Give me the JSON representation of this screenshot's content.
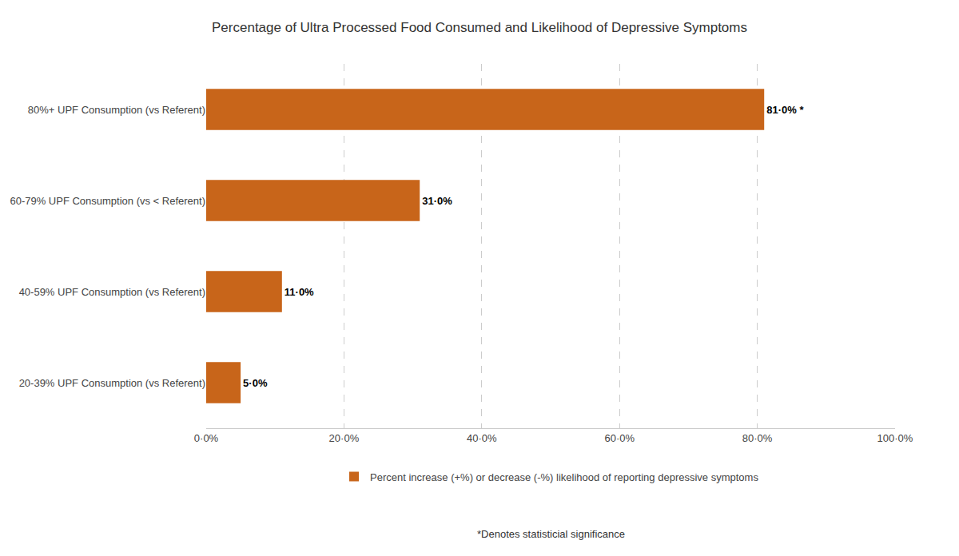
{
  "chart_data": {
    "type": "bar",
    "orientation": "horizontal",
    "title": "Percentage of Ultra Processed Food Consumed and Likelihood of Depressive Symptoms",
    "categories": [
      "20-39% UPF Consumption (vs Referent)",
      "40-59% UPF Consumption (vs Referent)",
      "60-79% UPF Consumption (vs < Referent)",
      "80%+ UPF Consumption (vs Referent)"
    ],
    "series": [
      {
        "name": "Percent increase (+%) or decrease (-%) likelihood of reporting depressive symptoms",
        "color": "#C8651A",
        "values": [
          5.0,
          11.0,
          31.0,
          81.0
        ],
        "value_labels": [
          "5·0%",
          "11·0%",
          "31·0%",
          "81·0% *"
        ]
      }
    ],
    "data_labels": true,
    "xlim": [
      0,
      100
    ],
    "xticks": [
      {
        "value": 0,
        "label": "0·0%"
      },
      {
        "value": 20,
        "label": "20·0%"
      },
      {
        "value": 40,
        "label": "40·0%"
      },
      {
        "value": 60,
        "label": "60·0%"
      },
      {
        "value": 80,
        "label": "80·0%"
      },
      {
        "value": 100,
        "label": "100·0%"
      }
    ],
    "grid": true,
    "legend": "bottom",
    "annotations": [
      "*Denotes statisticial significance"
    ]
  }
}
